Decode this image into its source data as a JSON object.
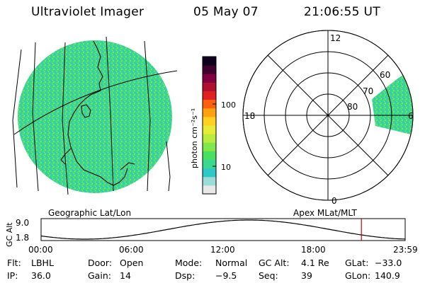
{
  "header": {
    "title": "Ultraviolet Imager",
    "date": "05 May 07",
    "time": "21:06:55 UT"
  },
  "geo_panel": {
    "caption": "Geographic Lat/Lon"
  },
  "colorbar": {
    "unit_label": "photon cm⁻²s⁻¹",
    "tick_labels": [
      "100",
      "10"
    ],
    "colors": [
      "#e8e8e8",
      "#9adcd8",
      "#2ec8c8",
      "#3cd890",
      "#48e060",
      "#80e84a",
      "#b8ec40",
      "#e8ea34",
      "#ffd020",
      "#ffa010",
      "#ff6010",
      "#e02020",
      "#b01030",
      "#800040",
      "#400030",
      "#100020"
    ]
  },
  "polar_panel": {
    "caption": "Apex MLat/MLT",
    "mlt_labels": {
      "top": "12",
      "left": "18",
      "right": "6",
      "bottom": "0"
    },
    "mlat_labels": [
      "60",
      "70",
      "80"
    ]
  },
  "timeline": {
    "ylabel": "GC Alt",
    "yticks": [
      "9.0",
      "1.8"
    ],
    "xticks": [
      "00:00",
      "06:00",
      "12:00",
      "18:00",
      "23:59"
    ],
    "current_time_hours": 21.115,
    "marker_color": "#cc0000"
  },
  "status": {
    "row1": [
      {
        "key": "Flt:",
        "value": "LBHL"
      },
      {
        "key": "Door:",
        "value": "Open"
      },
      {
        "key": "Mode:",
        "value": "Normal"
      },
      {
        "key": "GC Alt:",
        "value": "4.1 Re"
      },
      {
        "key": "GLat:",
        "value": "−33.0"
      }
    ],
    "row2": [
      {
        "key": "IP:",
        "value": "36.0"
      },
      {
        "key": "Gain:",
        "value": "14"
      },
      {
        "key": "Dsp:",
        "value": "−9.5"
      },
      {
        "key": "Seq:",
        "value": "39"
      },
      {
        "key": "GLon:",
        "value": "140.9"
      }
    ]
  }
}
